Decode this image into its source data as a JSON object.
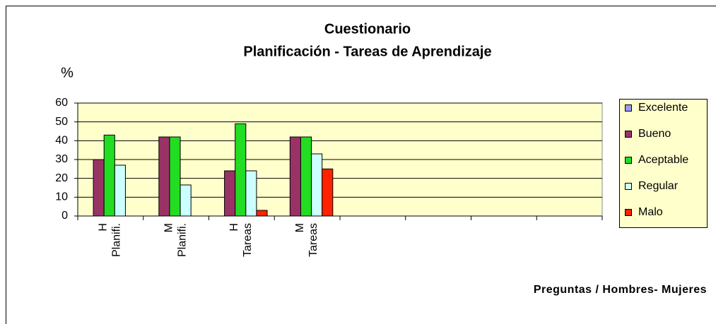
{
  "chart_data": {
    "type": "bar",
    "title": [
      "Cuestionario",
      "Planificación - Tareas de Aprendizaje"
    ],
    "y_label": "%",
    "x_label": "Preguntas / Hombres- Mujeres",
    "categories": [
      [
        "H",
        "Planifi."
      ],
      [
        "M",
        "Planifi."
      ],
      [
        "H",
        "Tareas"
      ],
      [
        "M",
        "Tareas"
      ],
      null,
      null,
      null,
      null
    ],
    "series": [
      {
        "name": "Excelente",
        "color": "#9999ff",
        "values": [
          0,
          0,
          0,
          0,
          null,
          null,
          null,
          null
        ]
      },
      {
        "name": "Bueno",
        "color": "#993366",
        "values": [
          30,
          42,
          24,
          42,
          null,
          null,
          null,
          null
        ]
      },
      {
        "name": "Aceptable",
        "color": "#22dd22",
        "values": [
          43,
          42,
          49,
          42,
          null,
          null,
          null,
          null
        ]
      },
      {
        "name": "Regular",
        "color": "#ccffff",
        "values": [
          27,
          16.5,
          24,
          33,
          null,
          null,
          null,
          null
        ]
      },
      {
        "name": "Malo",
        "color": "#ff2200",
        "values": [
          0,
          0,
          3,
          25,
          null,
          null,
          null,
          null
        ]
      }
    ],
    "ylim": [
      0,
      60
    ],
    "yticks": [
      0,
      10,
      20,
      30,
      40,
      50,
      60
    ],
    "grid": true,
    "legend": "right",
    "plot_background": "#ffffcc"
  }
}
